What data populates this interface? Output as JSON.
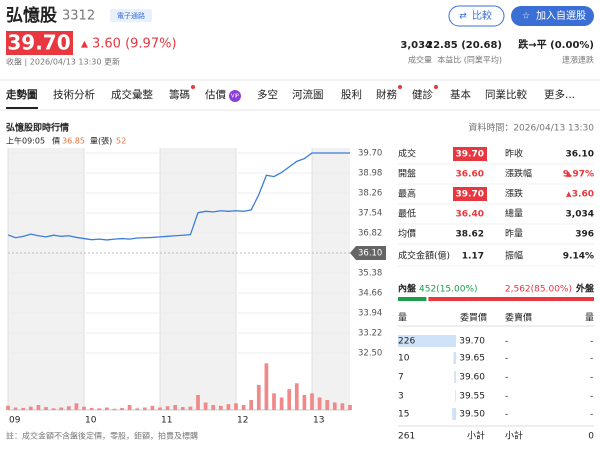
{
  "header": {
    "name": "弘憶股",
    "code": "3312",
    "tag": "電子通路",
    "buttons": [
      "比較",
      "加入自選股"
    ]
  },
  "quote": {
    "price": "39.70",
    "change": "3.60 (9.97%)",
    "status": "收盤 | 2026/04/13 13:30 更新"
  },
  "stats": [
    {
      "value": "3,034",
      "label": "成交量"
    },
    {
      "value": "22.85 (20.68)",
      "label": "本益比 (同業平均)"
    },
    {
      "value": "跌→平 (0.00%)",
      "label": "連漲連跌"
    }
  ],
  "tabs": [
    "走勢圖",
    "技術分析",
    "成交彙整",
    "籌碼",
    "估價",
    "多空",
    "河流圖",
    "股利",
    "財務",
    "健診",
    "基本",
    "同業比較",
    "更多..."
  ],
  "vip_badge": "VIP",
  "section": {
    "title": "弘憶股即時行情",
    "time": "資料時間：2026/04/13 13:30"
  },
  "chart_info": {
    "time": "上午09:05",
    "price_label": "價",
    "price": "36.85",
    "volume_label": "量(張)",
    "volume": "52"
  },
  "chart_data": {
    "type": "line",
    "x": [
      0,
      0.1,
      0.2,
      0.3,
      0.4,
      0.5,
      0.6,
      0.7,
      0.8,
      0.9,
      1,
      1.1,
      1.2,
      1.3,
      1.4,
      1.5,
      1.6,
      1.7,
      1.8,
      1.9,
      2,
      2.1,
      2.2,
      2.3,
      2.4,
      2.5,
      2.6,
      2.7,
      2.8,
      2.9,
      3,
      3.1,
      3.2,
      3.3,
      3.4,
      3.5,
      3.6,
      3.7,
      3.8,
      3.9,
      4,
      4.1,
      4.2,
      4.3,
      4.4,
      4.5
    ],
    "xlim": [
      0,
      4.5
    ],
    "xticks": [
      {
        "value": 0,
        "label": "09"
      },
      {
        "value": 1,
        "label": "10"
      },
      {
        "value": 2,
        "label": "11"
      },
      {
        "value": 3,
        "label": "12"
      },
      {
        "value": 4,
        "label": "13"
      }
    ],
    "ylim": [
      32.5,
      39.7
    ],
    "yticks": [
      {
        "value": 39.7,
        "label": "39.70"
      },
      {
        "value": 38.98,
        "label": "38.98"
      },
      {
        "value": 38.26,
        "label": "38.26"
      },
      {
        "value": 37.54,
        "label": "37.54"
      },
      {
        "value": 36.82,
        "label": "36.82"
      },
      {
        "value": 35.38,
        "label": "35.38"
      },
      {
        "value": 34.66,
        "label": "34.66"
      },
      {
        "value": 33.94,
        "label": "33.94"
      },
      {
        "value": 33.22,
        "label": "33.22"
      },
      {
        "value": 32.5,
        "label": "32.50"
      }
    ],
    "reference": {
      "value": 36.1,
      "label": "36.10"
    },
    "y2lim": [
      0,
      600
    ],
    "series": [
      {
        "color": "#3b7ddd",
        "values": [
          36.75,
          36.65,
          36.7,
          36.78,
          36.72,
          36.68,
          36.74,
          36.7,
          36.72,
          36.66,
          36.62,
          36.58,
          36.6,
          36.57,
          36.6,
          36.62,
          36.6,
          36.64,
          36.65,
          36.66,
          36.68,
          36.7,
          36.72,
          36.74,
          36.76,
          37.55,
          37.6,
          37.58,
          37.62,
          37.6,
          37.62,
          37.6,
          37.65,
          38.2,
          38.9,
          38.85,
          39.0,
          39.2,
          39.4,
          39.5,
          39.7,
          39.7,
          39.7,
          39.7,
          39.7,
          39.7
        ]
      },
      {
        "color": "#f08a8a",
        "type": "bar",
        "axis": "y2",
        "values": [
          52,
          30,
          25,
          40,
          60,
          35,
          20,
          30,
          45,
          80,
          40,
          25,
          20,
          30,
          15,
          25,
          60,
          20,
          30,
          50,
          30,
          45,
          60,
          35,
          40,
          180,
          90,
          60,
          50,
          70,
          80,
          60,
          120,
          300,
          560,
          200,
          150,
          250,
          320,
          180,
          200,
          150,
          120,
          90,
          80,
          60
        ]
      }
    ]
  },
  "summary": {
    "rows": [
      [
        {
          "label": "成交",
          "value": "39.70",
          "style": "boxed"
        },
        {
          "label": "昨收",
          "value": "36.10",
          "style": "plain"
        }
      ],
      [
        {
          "label": "開盤",
          "value": "36.60",
          "style": "red"
        },
        {
          "label": "漲跌幅",
          "value": "9.97%",
          "style": "up"
        }
      ],
      [
        {
          "label": "最高",
          "value": "39.70",
          "style": "boxed"
        },
        {
          "label": "漲跌",
          "value": "3.60",
          "style": "up"
        }
      ],
      [
        {
          "label": "最低",
          "value": "36.40",
          "style": "red"
        },
        {
          "label": "總量",
          "value": "3,034",
          "style": "plain"
        }
      ],
      [
        {
          "label": "均價",
          "value": "38.62",
          "style": "plain"
        },
        {
          "label": "昨量",
          "value": "396",
          "style": "plain"
        }
      ],
      [
        {
          "label": "成交金額(億)",
          "value": "1.17",
          "style": "plain"
        },
        {
          "label": "振幅",
          "value": "9.14%",
          "style": "plain"
        }
      ]
    ]
  },
  "order_flow": {
    "inner": {
      "label": "內盤",
      "text": "452(15.00%)",
      "percent": 15,
      "color": "#1a9e4a"
    },
    "outer": {
      "label": "外盤",
      "text": "2,562(85.00%)",
      "percent": 85,
      "color": "#e8373e"
    }
  },
  "order_book": {
    "headers": [
      "量",
      "委買價",
      "委賣價",
      "量"
    ],
    "rows": [
      {
        "bid_volume": 226,
        "bid": "39.70",
        "ask": "-",
        "ask_volume": "-"
      },
      {
        "bid_volume": 10,
        "bid": "39.65",
        "ask": "-",
        "ask_volume": "-"
      },
      {
        "bid_volume": 7,
        "bid": "39.60",
        "ask": "-",
        "ask_volume": "-"
      },
      {
        "bid_volume": 3,
        "bid": "39.55",
        "ask": "-",
        "ask_volume": "-"
      },
      {
        "bid_volume": 15,
        "bid": "39.50",
        "ask": "-",
        "ask_volume": "-"
      }
    ],
    "footer": [
      "261",
      "小計",
      "小計",
      "0"
    ]
  },
  "note": "註：成交金額不含盤後定價，零股，鉅額，拍賣及標購"
}
